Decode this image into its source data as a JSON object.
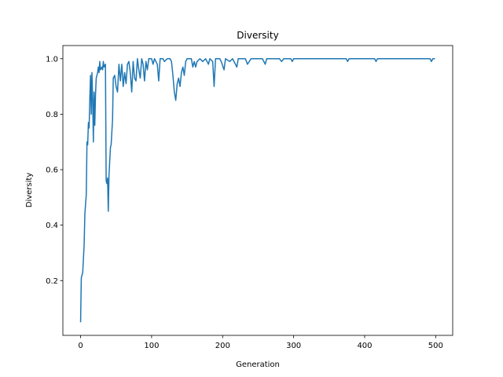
{
  "chart_data": {
    "type": "line",
    "title": "Diversity",
    "xlabel": "Generation",
    "ylabel": "Diversity",
    "x": [
      0,
      1,
      3,
      5,
      6,
      8,
      9,
      10,
      11,
      12,
      13,
      14,
      15,
      16,
      17,
      18,
      19,
      20,
      21,
      22,
      24,
      25,
      26,
      27,
      28,
      30,
      31,
      32,
      33,
      35,
      36,
      37,
      38,
      39,
      40,
      42,
      43,
      45,
      46,
      48,
      50,
      52,
      54,
      56,
      58,
      60,
      62,
      64,
      66,
      68,
      70,
      72,
      74,
      76,
      78,
      80,
      82,
      84,
      86,
      88,
      90,
      92,
      94,
      96,
      100,
      102,
      104,
      106,
      108,
      110,
      112,
      116,
      118,
      122,
      126,
      128,
      130,
      132,
      134,
      136,
      138,
      140,
      142,
      144,
      146,
      148,
      150,
      156,
      158,
      160,
      162,
      164,
      168,
      172,
      176,
      180,
      182,
      186,
      188,
      190,
      196,
      198,
      202,
      204,
      210,
      214,
      220,
      222,
      232,
      235,
      240,
      256,
      260,
      262,
      280,
      283,
      286,
      296,
      298,
      300,
      374,
      376,
      378,
      414,
      416,
      418,
      492,
      494,
      496,
      499
    ],
    "series": [
      {
        "name": "Diversity",
        "color": "#1f77b4",
        "values": [
          0.05,
          0.21,
          0.23,
          0.33,
          0.44,
          0.51,
          0.7,
          0.69,
          0.77,
          0.75,
          0.86,
          0.94,
          0.8,
          0.95,
          0.85,
          0.7,
          0.88,
          0.76,
          0.87,
          0.93,
          0.95,
          0.97,
          0.95,
          0.99,
          0.96,
          0.97,
          0.96,
          0.99,
          0.97,
          0.98,
          0.56,
          0.55,
          0.57,
          0.45,
          0.58,
          0.68,
          0.69,
          0.78,
          0.93,
          0.94,
          0.9,
          0.88,
          0.98,
          0.92,
          0.98,
          0.9,
          0.95,
          0.91,
          0.98,
          0.99,
          0.95,
          0.88,
          0.99,
          0.93,
          0.92,
          1.0,
          0.96,
          0.93,
          1.0,
          0.98,
          0.92,
          0.99,
          0.96,
          1.0,
          1.0,
          0.98,
          1.0,
          0.99,
          0.98,
          0.92,
          1.0,
          1.0,
          0.99,
          1.0,
          1.0,
          0.99,
          0.94,
          0.88,
          0.85,
          0.91,
          0.93,
          0.9,
          0.95,
          0.97,
          0.94,
          0.99,
          1.0,
          1.0,
          0.97,
          0.99,
          0.97,
          0.99,
          1.0,
          0.99,
          1.0,
          0.98,
          1.0,
          0.99,
          0.9,
          1.0,
          1.0,
          0.99,
          0.96,
          1.0,
          0.99,
          1.0,
          0.97,
          1.0,
          1.0,
          0.98,
          1.0,
          1.0,
          0.98,
          1.0,
          1.0,
          0.99,
          1.0,
          1.0,
          0.99,
          1.0,
          1.0,
          0.99,
          1.0,
          1.0,
          0.99,
          1.0,
          1.0,
          0.99,
          1.0,
          1.0
        ]
      }
    ],
    "xlim": [
      -24.95,
      523.95
    ],
    "xticks": [
      0,
      100,
      200,
      300,
      400,
      500
    ],
    "ylim": [
      0.0025,
      1.0475
    ],
    "yticks": [
      0.2,
      0.4,
      0.6,
      0.8,
      {
        "value": 1,
        "label": "1.0"
      }
    ],
    "grid": false
  }
}
